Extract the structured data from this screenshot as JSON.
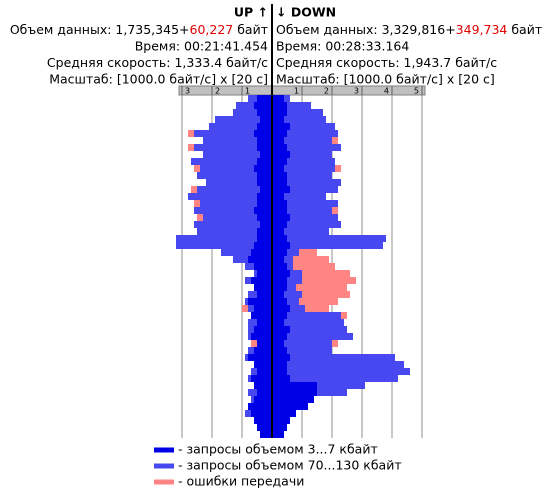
{
  "chart_data": {
    "type": "mirrored-bar",
    "up_title": "UP ↑",
    "down_title": "↓ DOWN",
    "up_lines": [
      [
        {
          "text": "Объем данных: 1,735,345+"
        },
        {
          "text": "60,227",
          "color": "#e00000"
        },
        {
          "text": " байт"
        }
      ],
      [
        {
          "text": "Время: 00:21:41.454"
        }
      ],
      [
        {
          "text": "Средняя скорость: 1,333.4 байт/с"
        }
      ],
      [
        {
          "text": "Масштаб: [1000.0 байт/с] x [20 с]"
        }
      ]
    ],
    "down_lines": [
      [
        {
          "text": "Объем данных: 3,329,816+"
        },
        {
          "text": "349,734",
          "color": "#e00000"
        },
        {
          "text": " байт"
        }
      ],
      [
        {
          "text": "Время: 00:28:33.164"
        }
      ],
      [
        {
          "text": "Средняя скорость: 1,943.7 байт/с"
        }
      ],
      [
        {
          "text": "Масштаб: [1000.0 байт/с] x [20 с]"
        }
      ]
    ],
    "up_xlim": [
      0,
      3.1
    ],
    "down_xlim": [
      0,
      5.1
    ],
    "up_xticks": [
      1,
      2,
      3
    ],
    "down_xticks": [
      1,
      2,
      3,
      4,
      5
    ],
    "grid": true,
    "series": [
      {
        "name": "- запросы объемом 3...7 кбайт",
        "color": "#0000e8",
        "up_values": [
          0.5,
          0.6,
          0.5,
          0.4,
          0.5,
          0.6,
          0.5,
          0.5,
          0.4,
          0.5,
          0.6,
          0.5,
          0.5,
          0.4,
          0.5,
          0.5,
          0.6,
          0.5,
          0.4,
          0.5,
          0.5,
          0.6,
          0.7,
          0.8,
          0.6,
          0.5,
          0.7,
          0.6,
          0.5,
          0.8,
          0.6,
          0.7,
          0.5,
          0.6,
          0.7,
          0.5,
          0.6,
          0.8,
          0.6,
          0.5,
          0.7,
          0.6,
          0.5,
          0.6,
          0.8,
          0.7,
          0.6,
          0.5,
          0.4
        ],
        "down_values": [
          0.4,
          0.5,
          0.5,
          0.4,
          0.6,
          0.5,
          0.4,
          0.5,
          0.6,
          0.5,
          0.4,
          0.5,
          0.5,
          0.6,
          0.4,
          0.5,
          0.5,
          0.6,
          0.5,
          0.4,
          0.5,
          0.6,
          0.5,
          0.4,
          0.5,
          0.6,
          0.5,
          0.5,
          0.4,
          0.5,
          0.6,
          0.5,
          0.4,
          0.6,
          0.5,
          0.4,
          0.5,
          0.6,
          0.5,
          0.5,
          0.6,
          1.5,
          1.5,
          1.4,
          1.2,
          0.8,
          0.6,
          0.5,
          0.4
        ]
      },
      {
        "name": "- запросы объемом 70...130 кбайт",
        "color": "#4848f0",
        "up_values": [
          0.3,
          0.6,
          0.8,
          1.5,
          1.6,
          2.0,
          1.8,
          2.1,
          1.9,
          2.2,
          1.8,
          2.0,
          1.7,
          2.1,
          2.3,
          1.9,
          2.0,
          1.8,
          2.2,
          2.0,
          2.7,
          2.6,
          1.0,
          0.5,
          0.3,
          0.1,
          0.2,
          0,
          0.3,
          0.1,
          0.2,
          0,
          0.3,
          0.2,
          0.1,
          0,
          0.2,
          0.1,
          0,
          0.2,
          0.1,
          0,
          0.3,
          0.1,
          0,
          0.2,
          0,
          0,
          0
        ],
        "down_values": [
          0.2,
          0.8,
          1.2,
          1.4,
          1.5,
          1.7,
          1.6,
          1.8,
          1.4,
          1.6,
          1.7,
          1.5,
          1.8,
          1.6,
          1.4,
          1.7,
          1.5,
          1.6,
          1.8,
          1.5,
          3.3,
          3.1,
          0.4,
          0.3,
          0.2,
          0.4,
          0.5,
          0.3,
          0.6,
          0.4,
          0.5,
          1.8,
          2.0,
          1.9,
          2.2,
          1.6,
          1.5,
          3.5,
          3.9,
          4.1,
          3.6,
          1.6,
          1.0,
          0,
          0,
          0,
          0,
          0,
          0
        ]
      },
      {
        "name": "- ошибки передачи",
        "color": "#ff8484",
        "up_values": [
          0,
          0,
          0,
          0,
          0,
          0.2,
          0,
          0.2,
          0,
          0,
          0.2,
          0,
          0,
          0.2,
          0,
          0.2,
          0,
          0.2,
          0,
          0,
          0,
          0,
          0,
          0,
          0,
          0,
          0,
          0,
          0,
          0,
          0.2,
          0,
          0,
          0,
          0,
          0.2,
          0,
          0,
          0,
          0,
          0,
          0,
          0,
          0,
          0,
          0,
          0,
          0,
          0
        ],
        "down_values": [
          0,
          0,
          0,
          0,
          0,
          0,
          0.2,
          0,
          0,
          0,
          0.2,
          0,
          0,
          0,
          0,
          0,
          0.2,
          0,
          0,
          0,
          0,
          0,
          0.6,
          1.2,
          1.4,
          1.6,
          1.8,
          1.7,
          1.6,
          1.3,
          0.8,
          0.2,
          0,
          0,
          0,
          0.2,
          0,
          0,
          0,
          0,
          0,
          0,
          0,
          0,
          0,
          0,
          0,
          0,
          0
        ]
      }
    ]
  }
}
